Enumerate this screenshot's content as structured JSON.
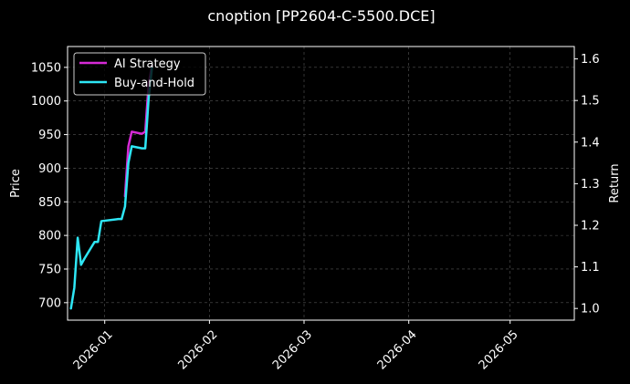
{
  "chart_data": {
    "type": "line",
    "title": "cnoption [PP2604-C-5500.DCE]",
    "xlabel": "",
    "ylabel": "Price",
    "y2label": "Return",
    "x_range": [
      "2025-12-21",
      "2026-05-20"
    ],
    "ylim": [
      674,
      1081
    ],
    "y2lim": [
      0.9719,
      1.6298
    ],
    "x_ticks": [
      "2026-01",
      "2026-02",
      "2026-03",
      "2026-04",
      "2026-05"
    ],
    "y_ticks": [
      700,
      750,
      800,
      850,
      900,
      950,
      1000,
      1050
    ],
    "y2_ticks": [
      "1.0",
      "1.1",
      "1.2",
      "1.3",
      "1.4",
      "1.5",
      "1.6"
    ],
    "y2_tick_values": [
      1.0,
      1.1,
      1.2,
      1.3,
      1.4,
      1.5,
      1.6
    ],
    "grid": true,
    "legend_position": "top-left",
    "series": [
      {
        "name": "AI Strategy",
        "axis": "y2",
        "color": "#d62ad6",
        "x": [
          "2026-01-07",
          "2026-01-08",
          "2026-01-09",
          "2026-01-12",
          "2026-01-13",
          "2026-01-14",
          "2026-01-15"
        ],
        "values": [
          1.27,
          1.39,
          1.425,
          1.42,
          1.425,
          1.54,
          1.585
        ]
      },
      {
        "name": "Buy-and-Hold",
        "axis": "y2",
        "color": "#2ee6f5",
        "x": [
          "2025-12-22",
          "2025-12-23",
          "2025-12-24",
          "2025-12-25",
          "2025-12-26",
          "2025-12-29",
          "2025-12-30",
          "2025-12-31",
          "2026-01-05",
          "2026-01-06",
          "2026-01-07",
          "2026-01-08",
          "2026-01-09",
          "2026-01-12",
          "2026-01-13",
          "2026-01-14",
          "2026-01-15"
        ],
        "values": [
          1.0,
          1.05,
          1.17,
          1.105,
          1.12,
          1.16,
          1.16,
          1.21,
          1.215,
          1.215,
          1.245,
          1.35,
          1.39,
          1.385,
          1.385,
          1.505,
          1.58
        ]
      }
    ]
  }
}
